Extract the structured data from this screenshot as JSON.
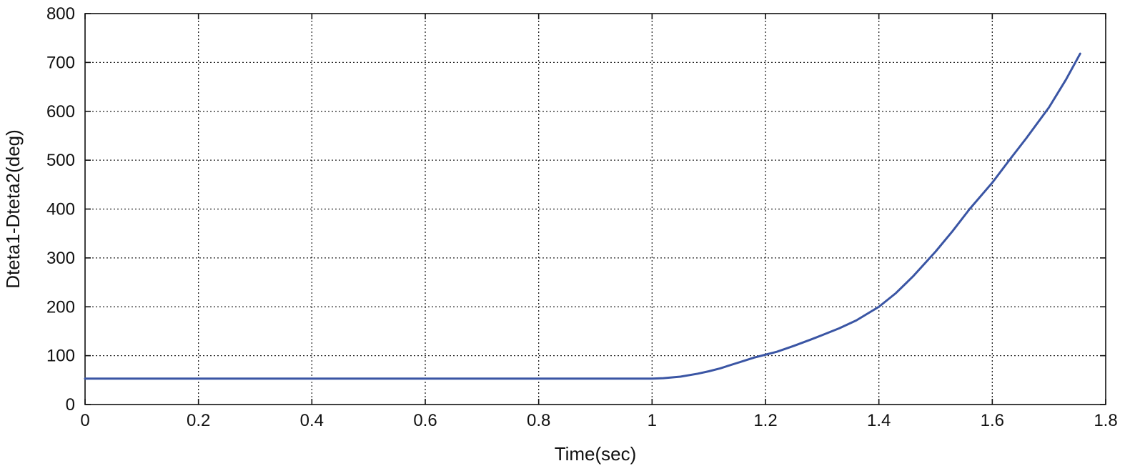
{
  "chart_data": {
    "type": "line",
    "title": "",
    "xlabel": "Time(sec)",
    "ylabel": "Dteta1-Dteta2(deg)",
    "xlim": [
      0,
      1.8
    ],
    "ylim": [
      0,
      800
    ],
    "xticks": [
      "0",
      "0.2",
      "0.4",
      "0.6",
      "0.8",
      "1",
      "1.2",
      "1.4",
      "1.6",
      "1.8"
    ],
    "yticks": [
      "0",
      "100",
      "200",
      "300",
      "400",
      "500",
      "600",
      "700",
      "800"
    ],
    "grid": true,
    "line_color": "#3a55a4",
    "series": [
      {
        "x": [
          0,
          0.2,
          0.4,
          0.6,
          0.8,
          1.0,
          1.02,
          1.05,
          1.08,
          1.1,
          1.12,
          1.15,
          1.18,
          1.2,
          1.22,
          1.25,
          1.28,
          1.3,
          1.33,
          1.36,
          1.4,
          1.43,
          1.46,
          1.5,
          1.53,
          1.56,
          1.6,
          1.63,
          1.66,
          1.7,
          1.73,
          1.755
        ],
        "y": [
          53,
          53,
          53,
          53,
          53,
          53,
          54,
          57,
          63,
          68,
          74,
          85,
          96,
          102,
          108,
          120,
          133,
          142,
          156,
          172,
          200,
          228,
          262,
          313,
          355,
          400,
          454,
          500,
          545,
          608,
          665,
          718
        ]
      }
    ]
  }
}
